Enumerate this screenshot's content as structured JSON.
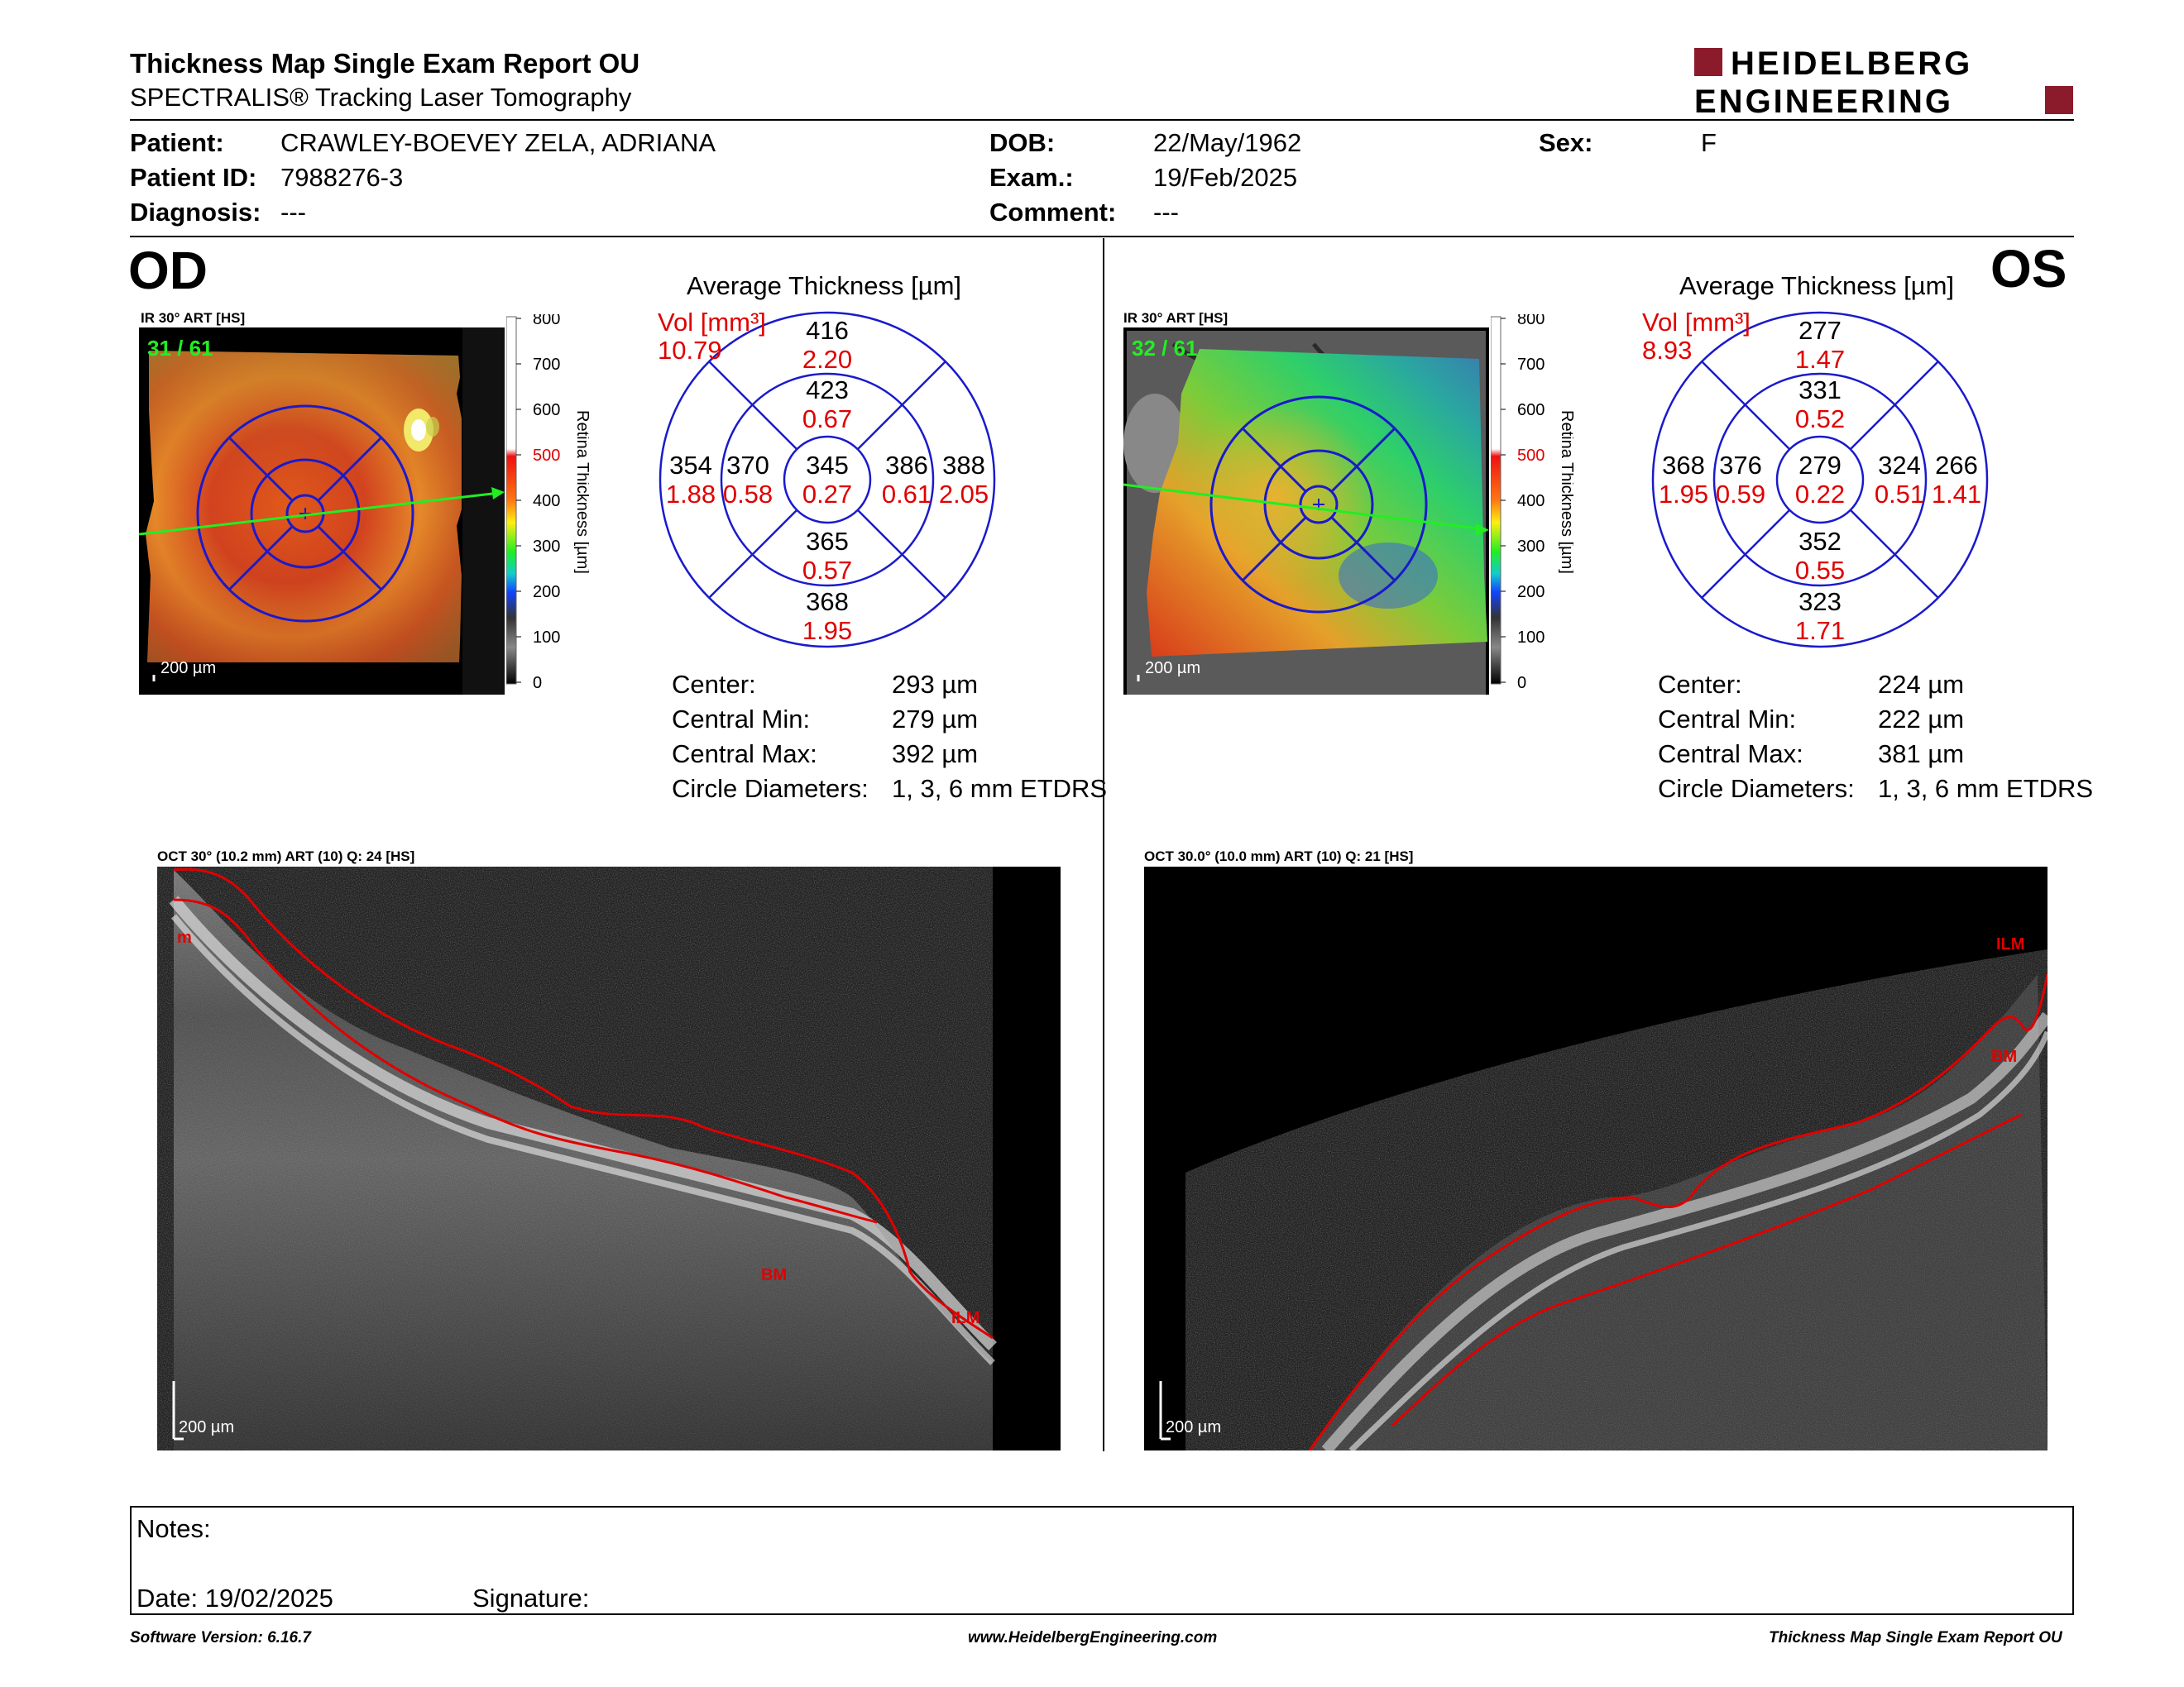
{
  "header": {
    "title": "Thickness Map Single Exam Report OU",
    "subtitle": "SPECTRALIS® Tracking Laser Tomography",
    "logo_line1": "HEIDELBERG",
    "logo_line2": "ENGINEERING"
  },
  "patient": {
    "patient_label": "Patient:",
    "patient_value": "CRAWLEY-BOEVEY ZELA, ADRIANA",
    "id_label": "Patient ID:",
    "id_value": "7988276-3",
    "diagnosis_label": "Diagnosis:",
    "diagnosis_value": "---",
    "dob_label": "DOB:",
    "dob_value": "22/May/1962",
    "exam_label": "Exam.:",
    "exam_value": "19/Feb/2025",
    "comment_label": "Comment:",
    "comment_value": "---",
    "sex_label": "Sex:",
    "sex_value": "F"
  },
  "od": {
    "eye": "OD",
    "ir_caption": "IR 30° ART [HS]",
    "frame": "31 / 61",
    "scale_bar": "200 µm",
    "colorbar_ticks": [
      "800",
      "700",
      "600",
      "500",
      "400",
      "300",
      "200",
      "100",
      "0"
    ],
    "colorbar_red_ticks": [
      "500"
    ],
    "colorbar_title": "Retina  Thickness [µm]",
    "avg_title": "Average Thickness [µm]",
    "vol_label": "Vol [mm³]",
    "vol_value": "10.79",
    "etdrs": {
      "center": {
        "t": "345",
        "v": "0.27"
      },
      "inner_sup": {
        "t": "423",
        "v": "0.67"
      },
      "inner_inf": {
        "t": "365",
        "v": "0.57"
      },
      "inner_nasal_left": {
        "t": "370",
        "v": "0.58"
      },
      "inner_right": {
        "t": "386",
        "v": "0.61"
      },
      "outer_sup": {
        "t": "416",
        "v": "2.20"
      },
      "outer_inf": {
        "t": "368",
        "v": "1.95"
      },
      "outer_left": {
        "t": "354",
        "v": "1.88"
      },
      "outer_right": {
        "t": "388",
        "v": "2.05"
      }
    },
    "stats": {
      "center_label": "Center:",
      "center_value": "293 µm",
      "cmin_label": "Central Min:",
      "cmin_value": "279 µm",
      "cmax_label": "Central Max:",
      "cmax_value": "392 µm",
      "diam_label": "Circle Diameters:",
      "diam_value": "1, 3, 6 mm ETDRS"
    },
    "oct_caption": "OCT 30° (10.2 mm) ART (10) Q: 24 [HS]",
    "oct_scale": "200 µm",
    "oct_label_m": "m",
    "oct_label_bm": "BM",
    "oct_label_ilm": "ILM"
  },
  "os": {
    "eye": "OS",
    "ir_caption": "IR 30° ART [HS]",
    "frame": "32 / 61",
    "scale_bar": "200 µm",
    "colorbar_ticks": [
      "800",
      "700",
      "600",
      "500",
      "400",
      "300",
      "200",
      "100",
      "0"
    ],
    "colorbar_red_ticks": [
      "500"
    ],
    "colorbar_title": "Retina  Thickness [µm]",
    "avg_title": "Average Thickness [µm]",
    "vol_label": "Vol [mm³]",
    "vol_value": "8.93",
    "etdrs": {
      "center": {
        "t": "279",
        "v": "0.22"
      },
      "inner_sup": {
        "t": "331",
        "v": "0.52"
      },
      "inner_inf": {
        "t": "352",
        "v": "0.55"
      },
      "inner_nasal_left": {
        "t": "376",
        "v": "0.59"
      },
      "inner_right": {
        "t": "324",
        "v": "0.51"
      },
      "outer_sup": {
        "t": "277",
        "v": "1.47"
      },
      "outer_inf": {
        "t": "323",
        "v": "1.71"
      },
      "outer_left": {
        "t": "368",
        "v": "1.95"
      },
      "outer_right": {
        "t": "266",
        "v": "1.41"
      }
    },
    "stats": {
      "center_label": "Center:",
      "center_value": "224 µm",
      "cmin_label": "Central Min:",
      "cmin_value": "222 µm",
      "cmax_label": "Central Max:",
      "cmax_value": "381 µm",
      "diam_label": "Circle Diameters:",
      "diam_value": "1, 3, 6 mm ETDRS"
    },
    "oct_caption": "OCT 30.0° (10.0 mm) ART (10) Q: 21 [HS]",
    "oct_scale": "200 µm",
    "oct_label_bm": "BM",
    "oct_label_ilm": "ILM"
  },
  "notes": {
    "notes_label": "Notes:",
    "date_label": "Date: 19/02/2025",
    "signature_label": "Signature:"
  },
  "footer": {
    "version": "Software Version: 6.16.7",
    "url": "www.HeidelbergEngineering.com",
    "report": "Thickness Map Single Exam Report OU"
  },
  "colors": {
    "red_text": "#e00000",
    "etdrs_blue": "#1a1acc",
    "logo_red": "#8b1a2a",
    "frame_green": "#22ee22"
  }
}
